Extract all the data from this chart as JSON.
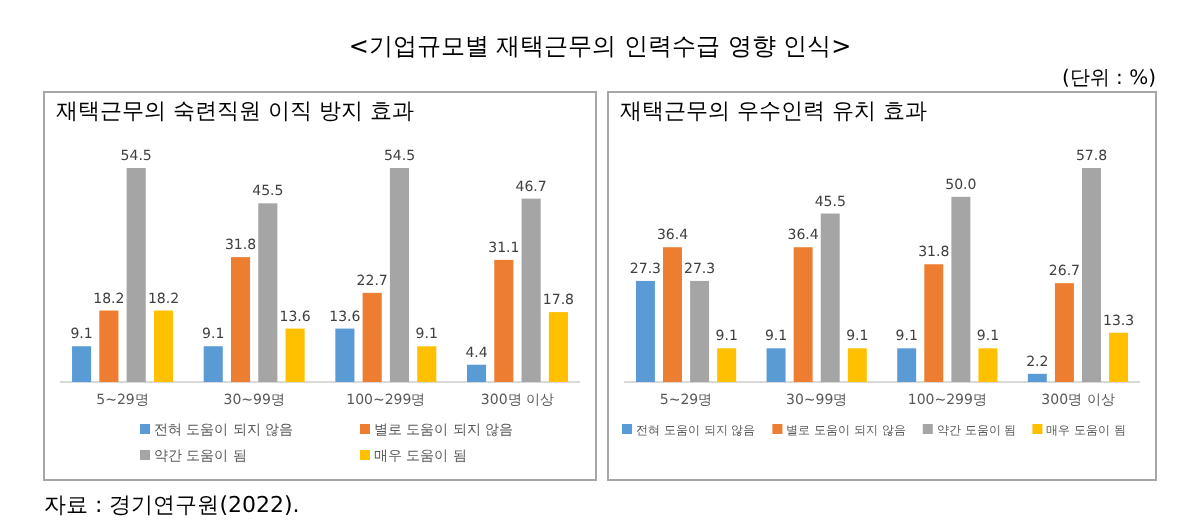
{
  "chart_data": [
    {
      "type": "bar",
      "title": "재택근무의 숙련직원 이직 방지 효과",
      "annotations": [
        "<기업규모별 재택근무의 인력수급 영향 인식>",
        "(단위 : %)",
        "자료 : 경기연구원(2022)."
      ],
      "categories": [
        "5~29명",
        "30~99명",
        "100~299명",
        "300명 이상"
      ],
      "series": [
        {
          "name": "전혀 도움이 되지 않음",
          "color": "#5b9bd5",
          "values": [
            9.1,
            9.1,
            13.6,
            4.4
          ]
        },
        {
          "name": "별로 도움이 되지 않음",
          "color": "#ed7d31",
          "values": [
            18.2,
            31.8,
            22.7,
            31.1
          ]
        },
        {
          "name": "약간 도움이 됨",
          "color": "#a5a5a5",
          "values": [
            54.5,
            45.5,
            54.5,
            46.7
          ]
        },
        {
          "name": "매우 도움이 됨",
          "color": "#ffc000",
          "values": [
            18.2,
            13.6,
            9.1,
            17.8
          ]
        }
      ],
      "data_labels": true,
      "legend": "bottom"
    },
    {
      "type": "bar",
      "title": "재택근무의 우수인력 유치 효과",
      "categories": [
        "5~29명",
        "30~99명",
        "100~299명",
        "300명 이상"
      ],
      "series": [
        {
          "name": "전혀 도움이 되지 않음",
          "color": "#5b9bd5",
          "values": [
            27.3,
            9.1,
            9.1,
            2.2
          ]
        },
        {
          "name": "별로 도움이 되지 않음",
          "color": "#ed7d31",
          "values": [
            36.4,
            36.4,
            31.8,
            26.7
          ]
        },
        {
          "name": "약간 도움이 됨",
          "color": "#a5a5a5",
          "values": [
            27.3,
            45.5,
            50.0,
            57.8
          ],
          "value_labels": [
            "27.3",
            "45.5",
            "50.0",
            "57.8"
          ]
        },
        {
          "name": "매우 도움이 됨",
          "color": "#ffc000",
          "values": [
            9.1,
            9.1,
            9.1,
            13.3
          ]
        }
      ],
      "data_labels": true,
      "legend": "bottom"
    }
  ]
}
